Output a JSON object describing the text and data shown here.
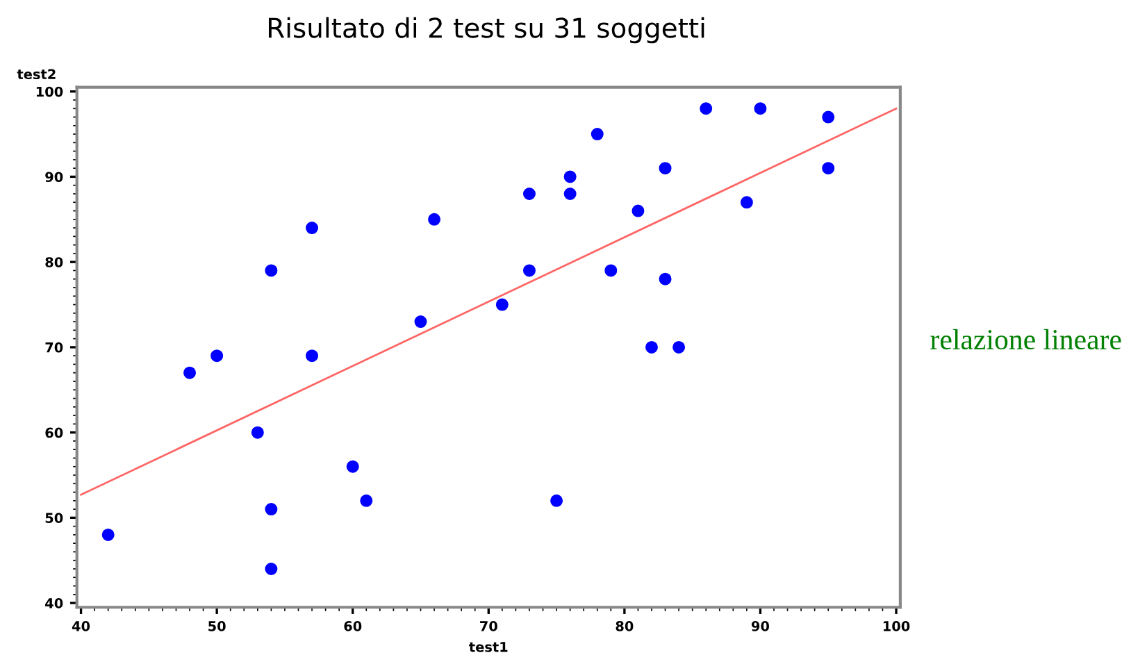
{
  "chart_data": {
    "type": "scatter",
    "title": "Risultato di 2 test su 31 soggetti",
    "xlabel": "test1",
    "ylabel": "test2",
    "annotations": [
      "relazione lineare"
    ],
    "xlim": [
      39.7,
      100.3
    ],
    "ylim": [
      39.5,
      100.5
    ],
    "xticks": [
      40,
      50,
      60,
      70,
      80,
      90,
      100
    ],
    "yticks": [
      40,
      50,
      60,
      70,
      80,
      90,
      100
    ],
    "grid": false,
    "legend": false,
    "marker": "circle",
    "series": [
      {
        "color": "#0000ff",
        "x": [
          42,
          48,
          50,
          53,
          54,
          54,
          54,
          57,
          57,
          60,
          61,
          65,
          66,
          71,
          73,
          73,
          75,
          76,
          76,
          78,
          79,
          81,
          82,
          83,
          83,
          84,
          86,
          89,
          90,
          95,
          95
        ],
        "values": [
          48,
          67,
          69,
          60,
          79,
          51,
          44,
          84,
          69,
          56,
          52,
          73,
          85,
          75,
          88,
          79,
          52,
          90,
          88,
          95,
          79,
          86,
          70,
          91,
          78,
          70,
          98,
          87,
          98,
          97,
          91
        ]
      },
      {
        "type": "line",
        "color": "#ff6666",
        "x": [
          40,
          100
        ],
        "values": [
          52.7,
          98
        ],
        "marker": "none",
        "line_style": "solid"
      }
    ]
  }
}
